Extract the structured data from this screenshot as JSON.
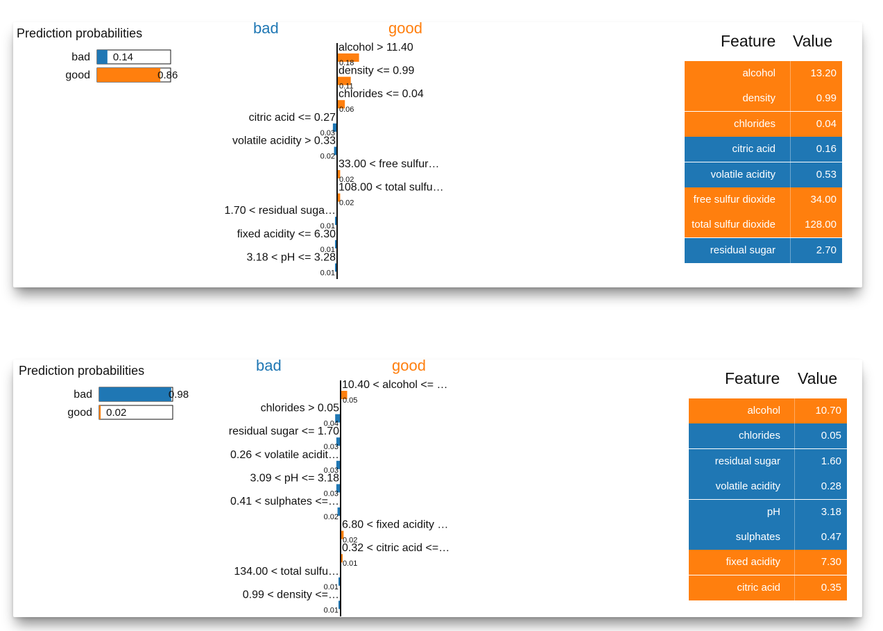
{
  "colors": {
    "bad": "#1f77b4",
    "good": "#ff7f0e"
  },
  "panels": [
    {
      "probs_title": "Prediction probabilities",
      "class_bad": "bad",
      "class_good": "good",
      "table_feature_header": "Feature",
      "table_value_header": "Value",
      "probabilities": [
        {
          "label": "bad",
          "value": 0.14,
          "text": "0.14",
          "color": "#1f77b4"
        },
        {
          "label": "good",
          "value": 0.86,
          "text": "0.86",
          "color": "#ff7f0e"
        }
      ],
      "features": [
        {
          "label": "alcohol > 11.40",
          "weight": 0.18,
          "text": "0.18",
          "side": "good"
        },
        {
          "label": "density <= 0.99",
          "weight": 0.11,
          "text": "0.11",
          "side": "good"
        },
        {
          "label": "chlorides <= 0.04",
          "weight": 0.06,
          "text": "0.06",
          "side": "good"
        },
        {
          "label": "citric acid <= 0.27",
          "weight": 0.03,
          "text": "0.03",
          "side": "bad"
        },
        {
          "label": "volatile acidity > 0.33",
          "weight": 0.02,
          "text": "0.02",
          "side": "bad"
        },
        {
          "label": "33.00 < free sulfur…",
          "weight": 0.02,
          "text": "0.02",
          "side": "good"
        },
        {
          "label": "108.00 < total sulfu…",
          "weight": 0.02,
          "text": "0.02",
          "side": "good"
        },
        {
          "label": "1.70 < residual suga…",
          "weight": 0.01,
          "text": "0.01",
          "side": "bad"
        },
        {
          "label": "fixed acidity <= 6.30",
          "weight": 0.01,
          "text": "0.01",
          "side": "bad"
        },
        {
          "label": "3.18 < pH <= 3.28",
          "weight": 0.01,
          "text": "0.01",
          "side": "bad"
        }
      ],
      "table": [
        {
          "feature": "alcohol",
          "value": "13.20",
          "side": "good"
        },
        {
          "feature": "density",
          "value": "0.99",
          "side": "good"
        },
        {
          "feature": "chlorides",
          "value": "0.04",
          "side": "good"
        },
        {
          "feature": "citric acid",
          "value": "0.16",
          "side": "bad"
        },
        {
          "feature": "volatile acidity",
          "value": "0.53",
          "side": "bad"
        },
        {
          "feature": "free sulfur dioxide",
          "value": "34.00",
          "side": "good"
        },
        {
          "feature": "total sulfur dioxide",
          "value": "128.00",
          "side": "good"
        },
        {
          "feature": "residual sugar",
          "value": "2.70",
          "side": "bad"
        }
      ]
    },
    {
      "probs_title": "Prediction probabilities",
      "class_bad": "bad",
      "class_good": "good",
      "table_feature_header": "Feature",
      "table_value_header": "Value",
      "probabilities": [
        {
          "label": "bad",
          "value": 0.98,
          "text": "0.98",
          "color": "#1f77b4"
        },
        {
          "label": "good",
          "value": 0.02,
          "text": "0.02",
          "color": "#ff7f0e"
        }
      ],
      "features": [
        {
          "label": "10.40 < alcohol <= …",
          "weight": 0.05,
          "text": "0.05",
          "side": "good"
        },
        {
          "label": "chlorides > 0.05",
          "weight": 0.04,
          "text": "0.04",
          "side": "bad"
        },
        {
          "label": "residual sugar <= 1.70",
          "weight": 0.03,
          "text": "0.03",
          "side": "bad"
        },
        {
          "label": "0.26 < volatile acidit…",
          "weight": 0.03,
          "text": "0.03",
          "side": "bad"
        },
        {
          "label": "3.09 < pH <= 3.18",
          "weight": 0.03,
          "text": "0.03",
          "side": "bad"
        },
        {
          "label": "0.41 < sulphates <=…",
          "weight": 0.02,
          "text": "0.02",
          "side": "bad"
        },
        {
          "label": "6.80 < fixed acidity …",
          "weight": 0.02,
          "text": "0.02",
          "side": "good"
        },
        {
          "label": "0.32 < citric acid <=…",
          "weight": 0.01,
          "text": "0.01",
          "side": "good"
        },
        {
          "label": "134.00 < total sulfu…",
          "weight": 0.01,
          "text": "0.01",
          "side": "bad"
        },
        {
          "label": "0.99 < density <=…",
          "weight": 0.01,
          "text": "0.01",
          "side": "bad"
        }
      ],
      "table": [
        {
          "feature": "alcohol",
          "value": "10.70",
          "side": "good"
        },
        {
          "feature": "chlorides",
          "value": "0.05",
          "side": "bad"
        },
        {
          "feature": "residual sugar",
          "value": "1.60",
          "side": "bad"
        },
        {
          "feature": "volatile acidity",
          "value": "0.28",
          "side": "bad"
        },
        {
          "feature": "pH",
          "value": "3.18",
          "side": "bad"
        },
        {
          "feature": "sulphates",
          "value": "0.47",
          "side": "bad"
        },
        {
          "feature": "fixed acidity",
          "value": "7.30",
          "side": "good"
        },
        {
          "feature": "citric acid",
          "value": "0.35",
          "side": "good"
        }
      ]
    }
  ],
  "chart_data": [
    {
      "type": "bar",
      "title": "Prediction probabilities",
      "categories": [
        "bad",
        "good"
      ],
      "values": [
        0.14,
        0.86
      ],
      "features": [
        "alcohol > 11.40",
        "density <= 0.99",
        "chlorides <= 0.04",
        "citric acid <= 0.27",
        "volatile acidity > 0.33",
        "33.00 < free sulfur…",
        "108.00 < total sulfu…",
        "1.70 < residual suga…",
        "fixed acidity <= 6.30",
        "3.18 < pH <= 3.28"
      ],
      "weights": [
        0.18,
        0.11,
        0.06,
        -0.03,
        -0.02,
        0.02,
        0.02,
        -0.01,
        -0.01,
        -0.01
      ]
    },
    {
      "type": "bar",
      "title": "Prediction probabilities",
      "categories": [
        "bad",
        "good"
      ],
      "values": [
        0.98,
        0.02
      ],
      "features": [
        "10.40 < alcohol <= …",
        "chlorides > 0.05",
        "residual sugar <= 1.70",
        "0.26 < volatile acidit…",
        "3.09 < pH <= 3.18",
        "0.41 < sulphates <=…",
        "6.80 < fixed acidity …",
        "0.32 < citric acid <=…",
        "134.00 < total sulfu…",
        "0.99 < density <=…"
      ],
      "weights": [
        0.05,
        -0.04,
        -0.03,
        -0.03,
        -0.03,
        -0.02,
        0.02,
        0.01,
        -0.01,
        -0.01
      ]
    }
  ]
}
